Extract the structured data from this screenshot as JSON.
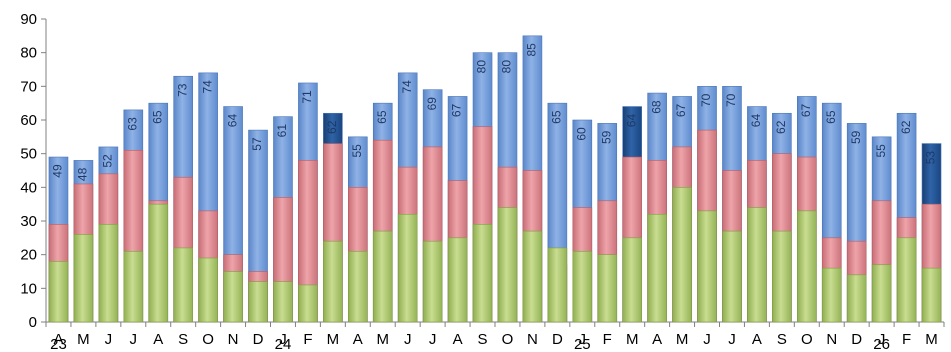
{
  "colors": {
    "top_series": "#6a96d6",
    "top_series_highlight": "#1f4e8c",
    "middle_series": "#d9828a",
    "bottom_series": "#a7c266",
    "axis": "#808080"
  },
  "chart_data": {
    "type": "bar",
    "stacked": false,
    "overlapped": true,
    "title": "",
    "xlabel": "",
    "ylabel": "",
    "ylim": [
      0,
      90
    ],
    "yticks": [
      0,
      10,
      20,
      30,
      40,
      50,
      60,
      70,
      80,
      90
    ],
    "grid": false,
    "legend": "none",
    "categories": [
      "A",
      "M",
      "J",
      "J",
      "A",
      "S",
      "O",
      "N",
      "D",
      "J",
      "F",
      "M",
      "A",
      "M",
      "J",
      "J",
      "A",
      "S",
      "O",
      "N",
      "D",
      "J",
      "F",
      "M",
      "A",
      "M",
      "J",
      "J",
      "A",
      "S",
      "O",
      "N",
      "D",
      "J",
      "F",
      "M"
    ],
    "year_labels": [
      {
        "label": "23",
        "category_index": 0
      },
      {
        "label": "24",
        "category_index": 9
      },
      {
        "label": "25",
        "category_index": 21
      },
      {
        "label": "26",
        "category_index": 33
      }
    ],
    "highlighted_indices": [
      11,
      23,
      35
    ],
    "series": [
      {
        "values": [
          49,
          48,
          52,
          63,
          65,
          73,
          74,
          64,
          57,
          61,
          71,
          62,
          55,
          65,
          74,
          69,
          67,
          80,
          80,
          85,
          65,
          60,
          59,
          64,
          68,
          67,
          70,
          70,
          64,
          62,
          67,
          65,
          59,
          55,
          62,
          53
        ],
        "data_labels": true
      },
      {
        "values": [
          29,
          41,
          44,
          51,
          36,
          43,
          33,
          20,
          15,
          37,
          48,
          53,
          40,
          54,
          46,
          52,
          42,
          58,
          46,
          45,
          17,
          34,
          36,
          49,
          48,
          52,
          57,
          45,
          48,
          50,
          49,
          25,
          24,
          36,
          31,
          35
        ],
        "data_labels": false
      },
      {
        "values": [
          18,
          26,
          29,
          21,
          35,
          22,
          19,
          15,
          12,
          12,
          11,
          24,
          21,
          27,
          32,
          24,
          25,
          29,
          34,
          27,
          22,
          21,
          20,
          25,
          32,
          40,
          33,
          27,
          34,
          27,
          33,
          16,
          14,
          17,
          25,
          16
        ],
        "data_labels": false
      }
    ]
  }
}
